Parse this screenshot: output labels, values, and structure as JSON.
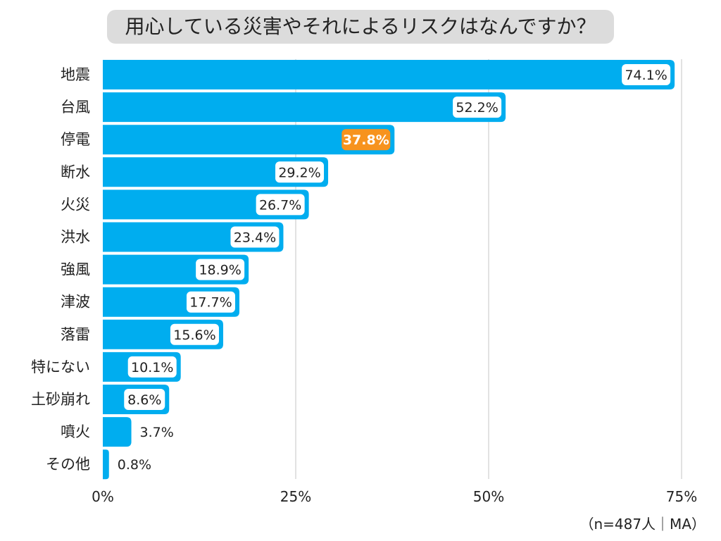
{
  "chart_data": {
    "type": "bar",
    "orientation": "horizontal",
    "title": "用心している災害やそれによるリスクはなんですか？",
    "categories": [
      "地震",
      "台風",
      "停電",
      "断水",
      "火災",
      "洪水",
      "強風",
      "津波",
      "落雷",
      "特にない",
      "土砂崩れ",
      "噴火",
      "その他"
    ],
    "values": [
      74.1,
      52.2,
      37.8,
      29.2,
      26.7,
      23.4,
      18.9,
      17.7,
      15.6,
      10.1,
      8.6,
      3.7,
      0.8
    ],
    "value_labels": [
      "74.1%",
      "52.2%",
      "37.8%",
      "29.2%",
      "26.7%",
      "23.4%",
      "18.9%",
      "17.7%",
      "15.6%",
      "10.1%",
      "8.6%",
      "3.7%",
      "0.8%"
    ],
    "highlight_index": 2,
    "xlim": [
      0,
      75
    ],
    "x_ticks": [
      0,
      25,
      50,
      75
    ],
    "x_tick_labels": [
      "0%",
      "25%",
      "50%",
      "75%"
    ],
    "grid": true,
    "xlabel": "",
    "ylabel": "",
    "note": "（n=487人｜MA）",
    "colors": {
      "bar": "#00ADEF",
      "highlight_label_bg": "#F7931E",
      "label_text": "#222222",
      "grid": "#d9d9d9",
      "title_bg": "#dcdcdc"
    }
  }
}
